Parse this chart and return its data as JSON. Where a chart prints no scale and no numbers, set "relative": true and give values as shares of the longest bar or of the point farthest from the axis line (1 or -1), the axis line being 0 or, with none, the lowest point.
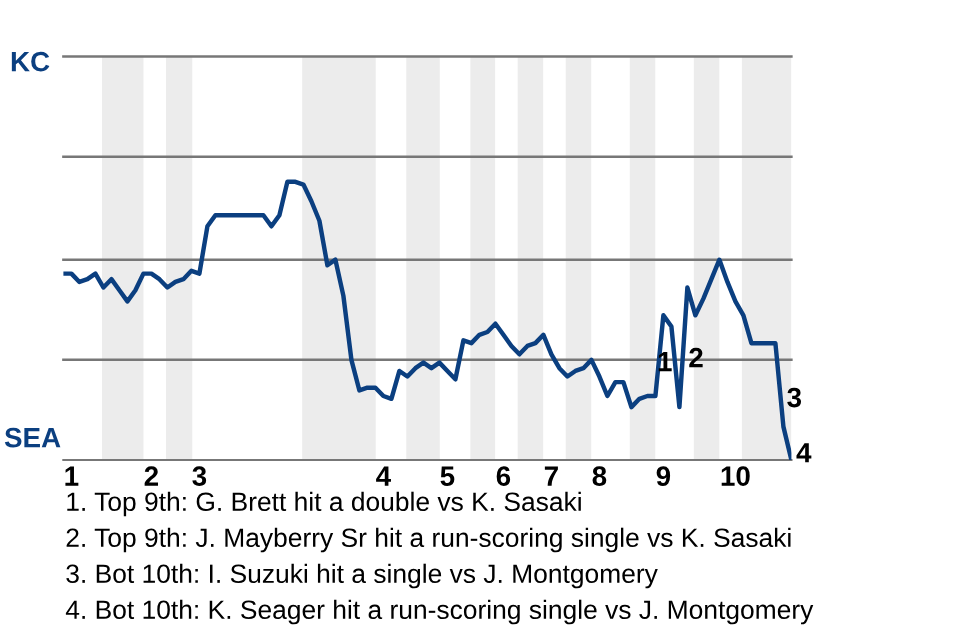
{
  "chart_data": {
    "type": "line",
    "color": "#0b3f80",
    "relative": true,
    "categories": [
      null,
      "1",
      null,
      null,
      null,
      null,
      null,
      null,
      null,
      null,
      null,
      "2",
      null,
      null,
      null,
      null,
      null,
      "3",
      null,
      null,
      null,
      null,
      null,
      null,
      null,
      null,
      null,
      null,
      null,
      null,
      null,
      null,
      null,
      null,
      null,
      null,
      null,
      null,
      null,
      null,
      "4",
      null,
      null,
      null,
      null,
      null,
      null,
      null,
      "5",
      null,
      null,
      null,
      null,
      null,
      null,
      "6",
      null,
      null,
      null,
      null,
      null,
      "7",
      null,
      null,
      null,
      null,
      null,
      "8",
      null,
      null,
      null,
      null,
      null,
      null,
      null,
      "9",
      null,
      null,
      null,
      null,
      null,
      null,
      null,
      null,
      "10",
      null,
      null,
      null,
      null,
      null,
      null,
      null
    ],
    "values": [
      0.67,
      0.67,
      0.64,
      0.65,
      0.67,
      0.62,
      0.65,
      0.61,
      0.57,
      0.61,
      0.67,
      0.67,
      0.65,
      0.62,
      0.64,
      0.65,
      0.68,
      0.67,
      0.84,
      0.88,
      0.88,
      0.88,
      0.88,
      0.88,
      0.88,
      0.88,
      0.84,
      0.88,
      1,
      1,
      0.99,
      0.93,
      0.86,
      0.7,
      0.72,
      0.59,
      0.36,
      0.25,
      0.26,
      0.26,
      0.23,
      0.22,
      0.32,
      0.3,
      0.33,
      0.35,
      0.33,
      0.35,
      0.32,
      0.29,
      0.43,
      0.42,
      0.45,
      0.46,
      0.49,
      0.45,
      0.41,
      0.38,
      0.41,
      0.42,
      0.45,
      0.38,
      0.33,
      0.3,
      0.32,
      0.33,
      0.36,
      0.3,
      0.23,
      0.28,
      0.28,
      0.19,
      0.22,
      0.23,
      0.23,
      0.52,
      0.48,
      0.19,
      0.62,
      0.52,
      0.58,
      0.65,
      0.72,
      0.64,
      0.57,
      0.52,
      0.42,
      0.42,
      0.42,
      0.42,
      0.12,
      0
    ],
    "legend": false,
    "marker": "none",
    "line_style": "solid",
    "ref_lines": [
      {
        "axis": "y",
        "value": 0.36,
        "color": "#777777"
      },
      {
        "axis": "y",
        "value": 0.72,
        "color": "#777777"
      },
      {
        "axis": "y",
        "value": 1.09,
        "color": "#777777"
      },
      {
        "axis": "y",
        "value": 1.45,
        "color": "#777777"
      }
    ],
    "annotations": [
      "1",
      "2",
      "3",
      "4",
      "KC",
      "SEA",
      "1. Top 9th: G. Brett hit a double vs K. Sasaki",
      "2. Top 9th: J. Mayberry Sr hit a run-scoring single vs K. Sasaki",
      "3. Bot 10th: I. Suzuki hit a single vs J. Montgomery",
      "4. Bot 10th: K. Seager hit a run-scoring single vs J. Montgomery"
    ]
  }
}
